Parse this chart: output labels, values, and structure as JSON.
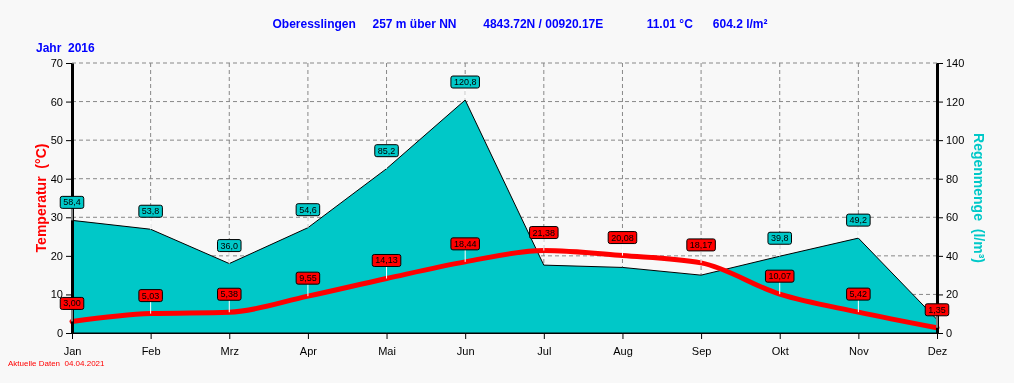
{
  "chart_data": {
    "type": "line",
    "title": "Oberesslingen     257 m über NN        4843.72N / 00920.17E             11.01 °C      604.2 l/m²",
    "subtitle": "Jahr  2016",
    "ylabel": "Temperatur  (°C)",
    "y2label": "Regenmenge  (l/m³)",
    "annotations": [
      "Aktuelle Daten  04.04.2021"
    ],
    "categories": [
      "Jan",
      "Feb",
      "Mrz",
      "Apr",
      "Mai",
      "Jun",
      "Jul",
      "Aug",
      "Sep",
      "Okt",
      "Nov",
      "Dez"
    ],
    "series": [
      {
        "type": "area",
        "axis": "y2",
        "color": "#00c8c8",
        "values": [
          58.4,
          53.8,
          36.0,
          54.6,
          85.2,
          120.8,
          35.2,
          34,
          30,
          39.8,
          49.2,
          7
        ],
        "value_labels": [
          "58,4",
          "53,8",
          "36,0",
          "54,6",
          "85,2",
          "120,8",
          null,
          null,
          null,
          "39,8",
          "49,2",
          null
        ]
      },
      {
        "color": "#ff0000",
        "values": [
          3.0,
          5.03,
          5.38,
          9.55,
          14.13,
          18.44,
          21.38,
          20.08,
          18.17,
          10.07,
          5.42,
          1.35
        ],
        "value_labels": [
          "3,00",
          "5,03",
          "5,38",
          "9,55",
          "14,13",
          "18,44",
          "21,38",
          "20,08",
          "18,17",
          "10,07",
          "5,42",
          "1,35"
        ]
      }
    ],
    "ylim": [
      0,
      70
    ],
    "yticks": [
      0,
      10,
      20,
      30,
      40,
      50,
      60,
      70
    ],
    "y2lim": [
      0,
      140
    ],
    "y2ticks": [
      0,
      20,
      40,
      60,
      80,
      100,
      120,
      140
    ],
    "grid": true,
    "marker": "none",
    "line_style": "solid"
  }
}
